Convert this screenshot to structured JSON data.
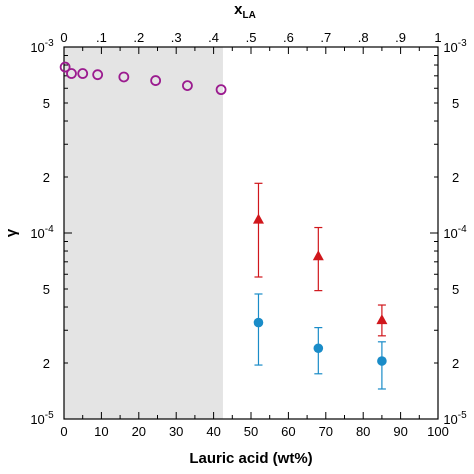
{
  "chart_data": {
    "type": "scatter",
    "title": "",
    "xlabel": "Lauric acid (wt%)",
    "xlabel_top": "x",
    "xlabel_top_sub": "LA",
    "ylabel": "γ",
    "xlim": [
      0,
      100
    ],
    "xlim_top": [
      0,
      1
    ],
    "ylim": [
      1e-05,
      0.001
    ],
    "yscale": "log",
    "grid": false,
    "legend": "none",
    "x_ticks": [
      "0",
      "10",
      "20",
      "30",
      "40",
      "50",
      "60",
      "70",
      "80",
      "90",
      "100"
    ],
    "x_tick_values": [
      0,
      10,
      20,
      30,
      40,
      50,
      60,
      70,
      80,
      90,
      100
    ],
    "x_top_ticks": [
      "0",
      ".1",
      ".2",
      ".3",
      ".4",
      ".5",
      ".6",
      ".7",
      ".8",
      ".9",
      "1"
    ],
    "x_top_tick_values": [
      0,
      0.1,
      0.2,
      0.3,
      0.4,
      0.5,
      0.6,
      0.7,
      0.8,
      0.9,
      1.0
    ],
    "y_major_ticks": [
      {
        "value": 1e-05,
        "base": "10",
        "exp": "-5"
      },
      {
        "value": 0.0001,
        "base": "10",
        "exp": "-4"
      },
      {
        "value": 0.001,
        "base": "10",
        "exp": "-3"
      }
    ],
    "y_minor_labels": [
      {
        "value": 2e-05,
        "label": "2"
      },
      {
        "value": 5e-05,
        "label": "5"
      },
      {
        "value": 0.0002,
        "label": "2"
      },
      {
        "value": 0.0005,
        "label": "5"
      }
    ],
    "shaded_region": {
      "x_start": 0,
      "x_end": 42.5,
      "color": "#e4e4e4"
    },
    "series": [
      {
        "marker": "open-circle",
        "color": "#9b1b8f",
        "points": [
          {
            "x": 0.3,
            "y": 0.00078
          },
          {
            "x": 2.0,
            "y": 0.00072
          },
          {
            "x": 5.0,
            "y": 0.00072
          },
          {
            "x": 9.0,
            "y": 0.00071
          },
          {
            "x": 16.0,
            "y": 0.00069
          },
          {
            "x": 24.5,
            "y": 0.00066
          },
          {
            "x": 33.0,
            "y": 0.00062
          },
          {
            "x": 42.0,
            "y": 0.00059
          }
        ]
      },
      {
        "marker": "filled-triangle",
        "color": "#d0171c",
        "points": [
          {
            "x": 52,
            "y": 0.000118,
            "err_low": 5.8e-05,
            "err_high": 0.000185
          },
          {
            "x": 68,
            "y": 7.5e-05,
            "err_low": 4.9e-05,
            "err_high": 0.000107
          },
          {
            "x": 85,
            "y": 3.4e-05,
            "err_low": 2.8e-05,
            "err_high": 4.1e-05
          }
        ]
      },
      {
        "marker": "filled-circle",
        "color": "#1a8cc8",
        "points": [
          {
            "x": 52,
            "y": 3.3e-05,
            "err_low": 1.95e-05,
            "err_high": 4.7e-05
          },
          {
            "x": 68,
            "y": 2.4e-05,
            "err_low": 1.75e-05,
            "err_high": 3.1e-05
          },
          {
            "x": 85,
            "y": 2.05e-05,
            "err_low": 1.45e-05,
            "err_high": 2.6e-05
          }
        ]
      }
    ]
  }
}
